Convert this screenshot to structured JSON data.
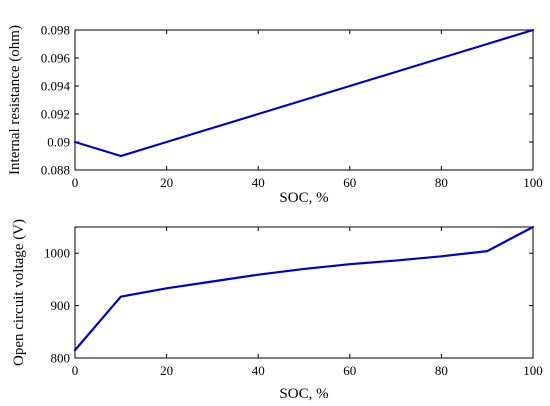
{
  "chart_data": [
    {
      "type": "line",
      "title": "",
      "xlabel": "SOC, %",
      "ylabel": "Internal resistance (ohm)",
      "xlim": [
        0,
        100
      ],
      "ylim": [
        0.088,
        0.098
      ],
      "xticks": [
        0,
        20,
        40,
        60,
        80,
        100
      ],
      "yticks": [
        0.088,
        0.09,
        0.092,
        0.094,
        0.096,
        0.098
      ],
      "ytick_labels": [
        "0.088",
        "0.09",
        "0.092",
        "0.094",
        "0.096",
        "0.098"
      ],
      "grid": false,
      "series": [
        {
          "color": "#0000cc",
          "x": [
            0,
            10,
            20,
            30,
            40,
            50,
            60,
            70,
            80,
            90,
            100
          ],
          "y": [
            0.09,
            0.089,
            0.09,
            0.091,
            0.092,
            0.093,
            0.094,
            0.095,
            0.096,
            0.097,
            0.098
          ]
        }
      ]
    },
    {
      "type": "line",
      "title": "",
      "xlabel": "SOC, %",
      "ylabel": "Open circuit voltage (V)",
      "xlim": [
        0,
        100
      ],
      "ylim": [
        800,
        1050
      ],
      "xticks": [
        0,
        20,
        40,
        60,
        80,
        100
      ],
      "yticks": [
        800,
        900,
        1000
      ],
      "ytick_labels": [
        "800",
        "900",
        "1000"
      ],
      "grid": false,
      "series": [
        {
          "color": "#0000cc",
          "x": [
            0,
            10,
            20,
            30,
            40,
            50,
            60,
            70,
            80,
            90,
            100
          ],
          "y": [
            815,
            917,
            933,
            946,
            959,
            970,
            979,
            986,
            994,
            1004,
            1050
          ]
        }
      ]
    }
  ]
}
